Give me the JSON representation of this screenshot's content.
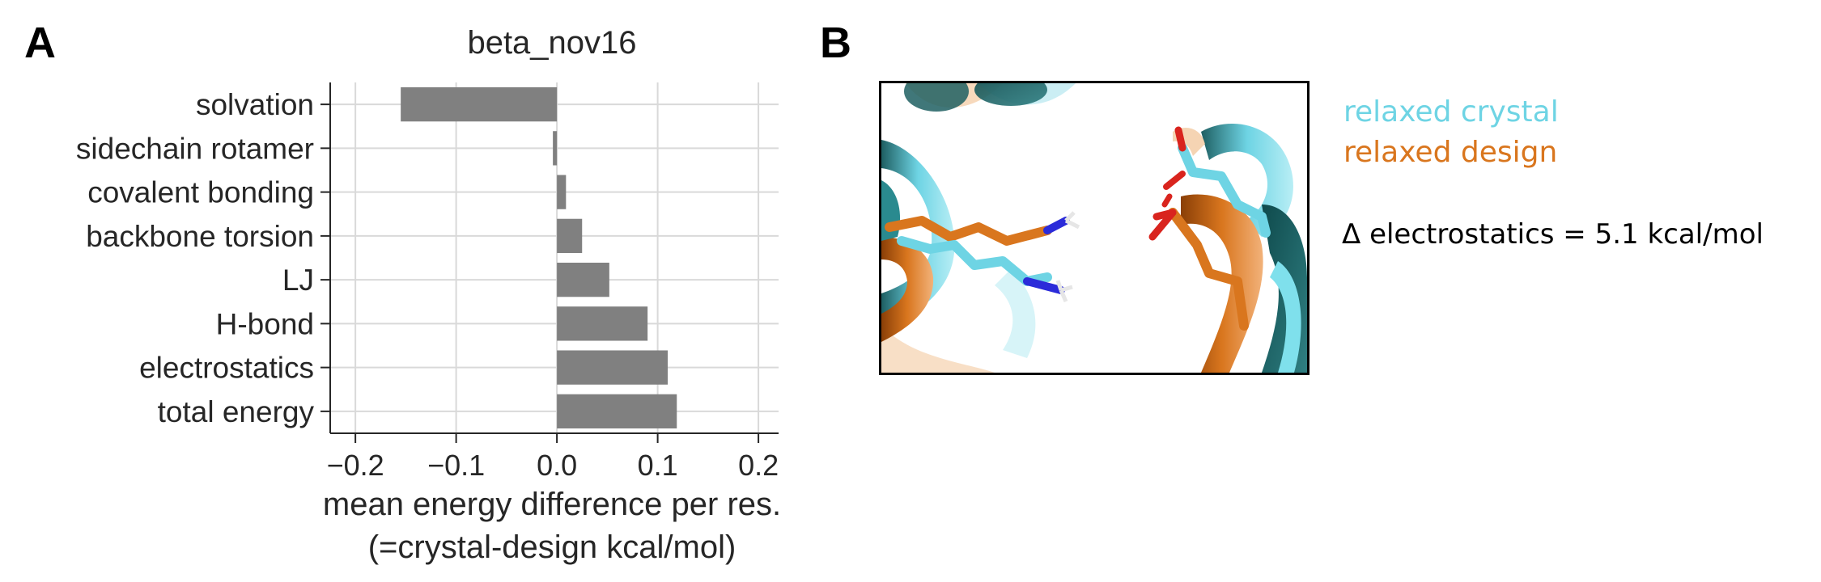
{
  "panels": {
    "a_label": "A",
    "b_label": "B"
  },
  "chart_data": {
    "type": "bar",
    "orientation": "horizontal",
    "title": "beta_nov16",
    "xlabel_line1": "mean energy difference per res.",
    "xlabel_line2": "(=crystal-design kcal/mol)",
    "ylabel": "",
    "categories": [
      "solvation",
      "sidechain rotamer",
      "covalent bonding",
      "backbone torsion",
      "LJ",
      "H-bond",
      "electrostatics",
      "total energy"
    ],
    "values": [
      -0.155,
      -0.004,
      0.009,
      0.025,
      0.052,
      0.09,
      0.11,
      0.119
    ],
    "xlim": [
      -0.225,
      0.22
    ],
    "xticks": [
      -0.2,
      -0.1,
      0.0,
      0.1,
      0.2
    ],
    "xtick_labels": [
      "−0.2",
      "−0.1",
      "0.0",
      "0.1",
      "0.2"
    ],
    "grid": true,
    "bar_color": "#808080"
  },
  "structure_panel": {
    "legend": {
      "crystal_label": "relaxed crystal",
      "crystal_color": "#6ED4E4",
      "design_label": "relaxed design",
      "design_color": "#D9761E"
    },
    "annotation": "Δ electrostatics = 5.1 kcal/mol"
  }
}
